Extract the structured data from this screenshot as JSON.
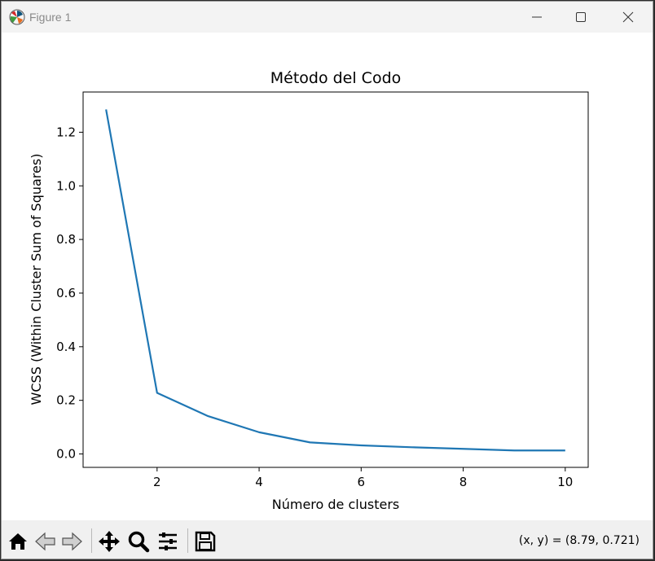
{
  "window": {
    "title": "Figure 1",
    "icon": "matplotlib-icon",
    "controls": [
      "minimize-icon",
      "maximize-icon",
      "close-icon"
    ]
  },
  "toolbar": {
    "tools": [
      "home-icon",
      "back-arrow-icon",
      "forward-arrow-icon",
      "pan-move-icon",
      "zoom-magnifier-icon",
      "configure-subplots-icon",
      "save-floppy-icon"
    ],
    "coordinates": "(x, y) = (8.79, 0.721)"
  },
  "chart_data": {
    "type": "line",
    "title": "Método del Codo",
    "xlabel": "Número de clusters",
    "ylabel": "WCSS (Within Cluster Sum of Squares)",
    "x": [
      1,
      2,
      3,
      4,
      5,
      6,
      7,
      8,
      9,
      10
    ],
    "series": [
      {
        "values": [
          1.285,
          0.228,
          0.141,
          0.081,
          0.043,
          0.032,
          0.025,
          0.019,
          0.013,
          0.013
        ],
        "color": "#1f77b4"
      }
    ],
    "xlim": [
      0.55,
      10.45
    ],
    "ylim": [
      -0.05,
      1.35
    ],
    "xticks": [
      2,
      4,
      6,
      8,
      10
    ],
    "xtick_labels": [
      "2",
      "4",
      "6",
      "8",
      "10"
    ],
    "yticks": [
      0.0,
      0.2,
      0.4,
      0.6,
      0.8,
      1.0,
      1.2
    ],
    "ytick_labels": [
      "0.0",
      "0.2",
      "0.4",
      "0.6",
      "0.8",
      "1.0",
      "1.2"
    ],
    "grid": false,
    "legend": false
  }
}
